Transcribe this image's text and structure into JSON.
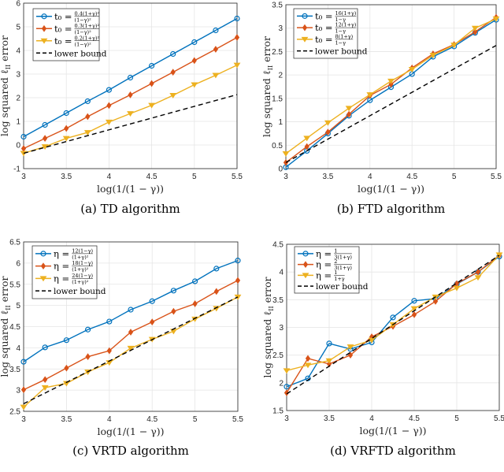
{
  "chart_data": [
    {
      "type": "line",
      "caption": "(a) TD algorithm",
      "xlabel": "log(1/(1 − γ))",
      "ylabel": {
        "before": "log squared ℓ",
        "sub": "II",
        "after": " error"
      },
      "xlim": [
        3,
        5.5
      ],
      "ylim": [
        -1,
        6
      ],
      "xticks": [
        3,
        3.5,
        4,
        4.5,
        5,
        5.5
      ],
      "yticks": [
        -1,
        0,
        1,
        2,
        3,
        4,
        5,
        6
      ],
      "grid": true,
      "legend_position": "top-left",
      "x": [
        3,
        3.25,
        3.5,
        3.75,
        4,
        4.25,
        4.5,
        4.75,
        5,
        5.25,
        5.5
      ],
      "series": [
        {
          "name": {
            "prefix": "t₀ =",
            "num": "0.4(1+γ)²",
            "den": "(1−γ)²"
          },
          "color": "#0072BD",
          "marker": "circle",
          "values": [
            0.35,
            0.85,
            1.35,
            1.85,
            2.33,
            2.85,
            3.35,
            3.85,
            4.35,
            4.85,
            5.35
          ]
        },
        {
          "name": {
            "prefix": "t₀ =",
            "num": "0.3(1+γ)²",
            "den": "(1−γ)²"
          },
          "color": "#D95319",
          "marker": "diamond",
          "values": [
            -0.15,
            0.28,
            0.7,
            1.2,
            1.67,
            2.12,
            2.6,
            3.08,
            3.57,
            4.05,
            4.55
          ]
        },
        {
          "name": {
            "prefix": "t₀ =",
            "num": "0.2(1+γ)²",
            "den": "(1−γ)²"
          },
          "color": "#EDB120",
          "marker": "triangle-down",
          "values": [
            -0.35,
            -0.07,
            0.28,
            0.53,
            0.97,
            1.33,
            1.68,
            2.1,
            2.55,
            2.95,
            3.38
          ]
        },
        {
          "name": {
            "prefix": "lower bound"
          },
          "color": "#000000",
          "marker": "none",
          "dashed": true,
          "x": [
            3,
            5.5
          ],
          "values": [
            -0.35,
            2.13
          ]
        }
      ]
    },
    {
      "type": "line",
      "caption": "(b) FTD algorithm",
      "xlabel": "log(1/(1 − γ))",
      "ylabel": {
        "before": "log squared ℓ",
        "sub": "II",
        "after": " error"
      },
      "xlim": [
        3,
        5.5
      ],
      "ylim": [
        0,
        3.5
      ],
      "xticks": [
        3,
        3.5,
        4,
        4.5,
        5,
        5.5
      ],
      "yticks": [
        0,
        0.5,
        1,
        1.5,
        2,
        2.5,
        3,
        3.5
      ],
      "grid": true,
      "legend_position": "top-left",
      "x": [
        3,
        3.25,
        3.5,
        3.75,
        4,
        4.25,
        4.5,
        4.75,
        5,
        5.25,
        5.5
      ],
      "series": [
        {
          "name": {
            "prefix": "t₀ =",
            "num": "16(1+γ)",
            "den": "1−γ"
          },
          "color": "#0072BD",
          "marker": "circle",
          "values": [
            0.03,
            0.38,
            0.75,
            1.13,
            1.46,
            1.74,
            2.02,
            2.39,
            2.61,
            2.9,
            3.18
          ]
        },
        {
          "name": {
            "prefix": "t₀ =",
            "num": "12(1+γ)",
            "den": "1−γ"
          },
          "color": "#D95319",
          "marker": "diamond",
          "values": [
            0.13,
            0.47,
            0.78,
            1.16,
            1.56,
            1.8,
            2.15,
            2.45,
            2.65,
            2.92,
            3.23
          ]
        },
        {
          "name": {
            "prefix": "t₀ =",
            "num": "8(1+γ)",
            "den": "1−γ"
          },
          "color": "#EDB120",
          "marker": "triangle-down",
          "values": [
            0.32,
            0.65,
            0.98,
            1.29,
            1.58,
            1.87,
            2.12,
            2.42,
            2.64,
            3.0,
            3.2
          ]
        },
        {
          "name": {
            "prefix": "lower bound"
          },
          "color": "#000000",
          "marker": "none",
          "dashed": true,
          "x": [
            3,
            5.5
          ],
          "values": [
            0.13,
            2.63
          ]
        }
      ]
    },
    {
      "type": "line",
      "caption": "(c) VRTD algorithm",
      "xlabel": "log(1/(1 − γ))",
      "ylabel": {
        "before": "log squared ℓ",
        "sub": "II",
        "after": " error"
      },
      "xlim": [
        3,
        5.5
      ],
      "ylim": [
        2.5,
        6.5
      ],
      "xticks": [
        3,
        3.5,
        4,
        4.5,
        5,
        5.5
      ],
      "yticks": [
        2.5,
        3,
        3.5,
        4,
        4.5,
        5,
        5.5,
        6,
        6.5
      ],
      "grid": true,
      "legend_position": "top-left",
      "x": [
        3,
        3.25,
        3.5,
        3.75,
        4,
        4.25,
        4.5,
        4.75,
        5,
        5.25,
        5.5
      ],
      "series": [
        {
          "name": {
            "prefix": "η =",
            "num": "12(1−γ)",
            "den": "(1+γ)²"
          },
          "color": "#0072BD",
          "marker": "circle",
          "values": [
            3.67,
            4.01,
            4.18,
            4.43,
            4.62,
            4.9,
            5.1,
            5.35,
            5.57,
            5.87,
            6.06
          ]
        },
        {
          "name": {
            "prefix": "η =",
            "num": "18(1−γ)",
            "den": "(1+γ)²"
          },
          "color": "#D95319",
          "marker": "diamond",
          "values": [
            3.01,
            3.25,
            3.52,
            3.79,
            3.93,
            4.37,
            4.61,
            4.86,
            5.04,
            5.33,
            5.59
          ]
        },
        {
          "name": {
            "prefix": "η =",
            "num": "24(1−γ)",
            "den": "(1+γ)²"
          },
          "color": "#EDB120",
          "marker": "triangle-down",
          "values": [
            2.6,
            3.06,
            3.16,
            3.43,
            3.65,
            3.99,
            4.2,
            4.39,
            4.68,
            4.93,
            5.2
          ]
        },
        {
          "name": {
            "prefix": "lower bound"
          },
          "color": "#000000",
          "marker": "none",
          "dashed": true,
          "x": [
            3,
            5.5
          ],
          "values": [
            2.68,
            5.2
          ]
        }
      ]
    },
    {
      "type": "line",
      "caption": "(d) VRFTD algorithm",
      "xlabel": "log(1/(1 − γ))",
      "ylabel": {
        "before": "log squared ℓ",
        "sub": "II",
        "after": " error"
      },
      "xlim": [
        3,
        5.5
      ],
      "ylim": [
        1.5,
        4.5
      ],
      "xticks": [
        3,
        3.5,
        4,
        4.5,
        5,
        5.5
      ],
      "yticks": [
        1.5,
        2,
        2.5,
        3,
        3.5,
        4,
        4.5
      ],
      "grid": true,
      "legend_position": "top-left",
      "x": [
        3,
        3.25,
        3.5,
        3.75,
        4,
        4.25,
        4.5,
        4.75,
        5,
        5.25,
        5.5
      ],
      "series": [
        {
          "name": {
            "prefix": "η =",
            "num": "1",
            "den": "3(1+γ)"
          },
          "color": "#0072BD",
          "marker": "circle",
          "values": [
            1.93,
            2.08,
            2.71,
            2.61,
            2.73,
            3.18,
            3.48,
            3.52,
            3.78,
            4.0,
            4.28
          ]
        },
        {
          "name": {
            "prefix": "η =",
            "num": "2",
            "den": "3(1+γ)"
          },
          "color": "#D95319",
          "marker": "diamond",
          "values": [
            1.82,
            2.44,
            2.34,
            2.5,
            2.83,
            3.02,
            3.23,
            3.47,
            3.79,
            4.0,
            4.3
          ]
        },
        {
          "name": {
            "prefix": "η =",
            "num": "1",
            "den": "1+γ"
          },
          "color": "#EDB120",
          "marker": "triangle-down",
          "values": [
            2.22,
            2.32,
            2.4,
            2.65,
            2.77,
            3.05,
            3.34,
            3.55,
            3.71,
            3.9,
            4.31
          ]
        },
        {
          "name": {
            "prefix": "lower bound"
          },
          "color": "#000000",
          "marker": "none",
          "dashed": true,
          "x": [
            3,
            5.5
          ],
          "values": [
            1.8,
            4.3
          ]
        }
      ]
    }
  ]
}
